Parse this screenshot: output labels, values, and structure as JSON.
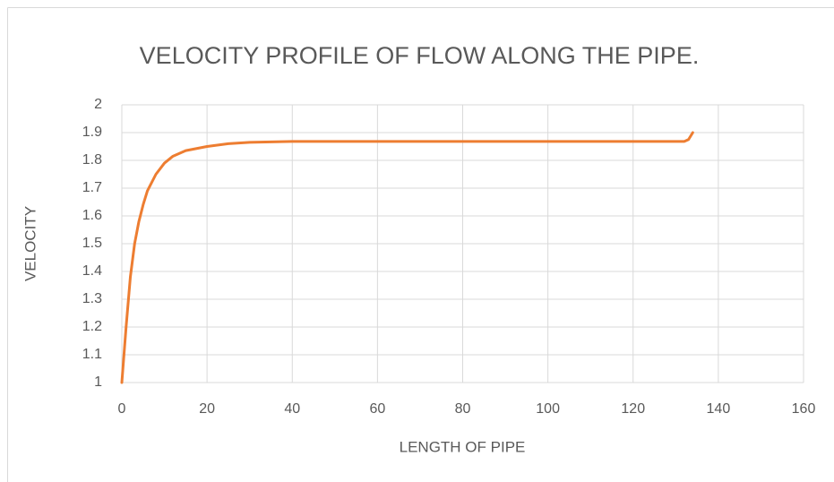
{
  "chart_data": {
    "type": "line",
    "title": "VELOCITY PROFILE OF FLOW ALONG THE PIPE.",
    "x_label": "LENGTH OF PIPE",
    "y_label": "VELOCITY",
    "x": [
      0,
      1,
      2,
      3,
      4,
      5,
      6,
      8,
      10,
      12,
      15,
      20,
      25,
      30,
      40,
      60,
      80,
      100,
      120,
      132,
      133,
      134
    ],
    "values": [
      1,
      1.2,
      1.38,
      1.5,
      1.58,
      1.64,
      1.69,
      1.75,
      1.79,
      1.815,
      1.835,
      1.85,
      1.86,
      1.865,
      1.868,
      1.868,
      1.868,
      1.868,
      1.868,
      1.868,
      1.875,
      1.9
    ],
    "color": "#ed7d31",
    "xlim": [
      0,
      160
    ],
    "xticks": [
      0,
      20,
      40,
      60,
      80,
      100,
      120,
      140,
      160
    ],
    "ylim": [
      1,
      2
    ],
    "yticks": [
      1,
      1.1,
      1.2,
      1.3,
      1.4,
      1.5,
      1.6,
      1.7,
      1.8,
      1.9,
      2
    ],
    "grid": true
  }
}
